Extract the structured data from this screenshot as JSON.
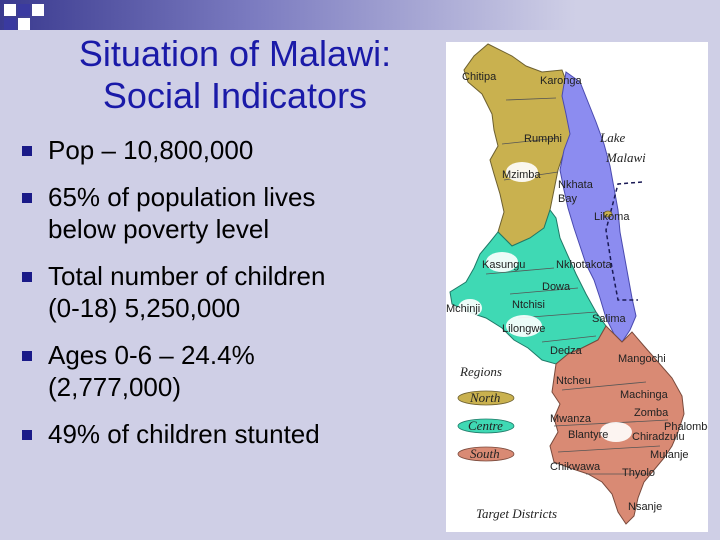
{
  "slide": {
    "title_line1": "Situation of Malawi:",
    "title_line2": "Social Indicators",
    "bullets": [
      {
        "line1": "Pop – 10,800,000",
        "line2": ""
      },
      {
        "line1": "65% of population lives",
        "line2": "below poverty level"
      },
      {
        "line1": "Total number of children",
        "line2": "(0-18) 5,250,000"
      },
      {
        "line1": "Ages 0-6 – 24.4%",
        "line2": "(2,777,000)"
      },
      {
        "line1": "49% of children stunted",
        "line2": ""
      }
    ]
  },
  "map": {
    "lake_label_1": "Lake",
    "lake_label_2": "Malawi",
    "districts": {
      "chitipa": "Chitipa",
      "karonga": "Karonga",
      "rumphi": "Rumphi",
      "mzimba": "Mzimba",
      "nkhata_bay_1": "Nkhata",
      "nkhata_bay_2": "Bay",
      "likoma": "Likoma",
      "kasungu": "Kasungu",
      "nkhotakota": "Nkhotakota",
      "dowa": "Dowa",
      "ntchisi": "Ntchisi",
      "mchinji": "Mchinji",
      "salima": "Salima",
      "lilongwe": "Lilongwe",
      "dedza": "Dedza",
      "mangochi": "Mangochi",
      "ntcheu": "Ntcheu",
      "machinga": "Machinga",
      "zomba": "Zomba",
      "mwanza": "Mwanza",
      "phalombe": "Phalombe",
      "blantyre": "Blantyre",
      "chiradzulu": "Chiradzulu",
      "mulanje": "Mulanje",
      "chikwawa": "Chikwawa",
      "thyolo": "Thyolo",
      "nsanje": "Nsanje"
    },
    "legend": {
      "title": "Regions",
      "north": "North",
      "centre": "Centre",
      "south": "South"
    },
    "caption": "Target Districts",
    "colors": {
      "north": "#c9b14f",
      "centre": "#3fd9b4",
      "south": "#d98a74",
      "lake": "#8c8cf0"
    }
  }
}
